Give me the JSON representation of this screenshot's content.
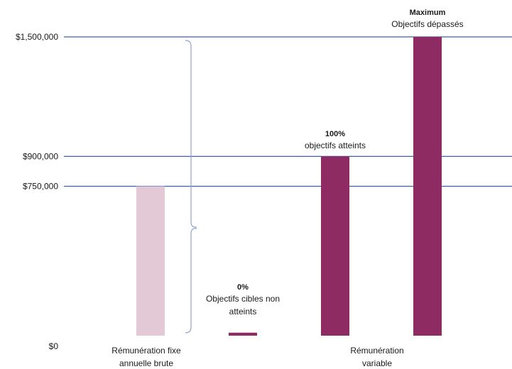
{
  "chart_data": {
    "type": "bar",
    "ylim": [
      0,
      1500000
    ],
    "yticks": [
      {
        "value": 0,
        "label": "$0"
      },
      {
        "value": 750000,
        "label": "$750,000"
      },
      {
        "value": 900000,
        "label": "$900,000"
      },
      {
        "value": 1500000,
        "label": "$1,500,000"
      }
    ],
    "reference_lines": [
      750000,
      900000,
      1500000
    ],
    "bars": [
      {
        "value": 750000,
        "color": "#e3c9d5"
      },
      {
        "value": 15000,
        "color": "#8e2b62",
        "annotation": {
          "bold": "0%",
          "lines": [
            "Objectifs cibles non",
            "atteints"
          ]
        }
      },
      {
        "value": 900000,
        "color": "#8e2b62",
        "annotation": {
          "bold": "100%",
          "lines": [
            "objectifs atteints"
          ]
        }
      },
      {
        "value": 1500000,
        "color": "#8e2b62",
        "annotation": {
          "bold": "Maximum",
          "lines": [
            "Objectifs dépassés"
          ]
        }
      }
    ],
    "categories": [
      {
        "lines": [
          "Rémunération fixe",
          "annuelle brute"
        ]
      },
      {
        "lines": [
          "Rémunération",
          "variable"
        ]
      }
    ],
    "line_color": "#3a5fb5",
    "brace_color": "#8fa4cf"
  }
}
